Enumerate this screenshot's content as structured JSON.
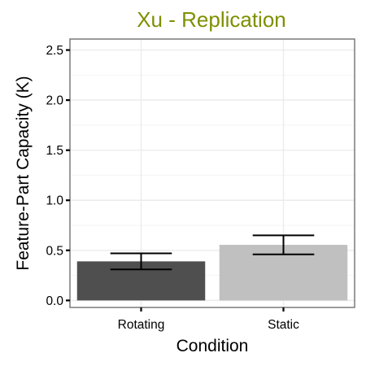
{
  "chart_data": {
    "type": "bar",
    "title": "Xu - Replication",
    "xlabel": "Condition",
    "ylabel": "Feature-Part Capacity (K)",
    "categories": [
      "Rotating",
      "Static"
    ],
    "values": [
      0.39,
      0.555
    ],
    "error_bars": {
      "lower": [
        0.31,
        0.46
      ],
      "upper": [
        0.47,
        0.65
      ]
    },
    "ylim": [
      -0.07,
      2.61
    ],
    "yticks": [
      0.0,
      0.5,
      1.0,
      1.5,
      2.0,
      2.5
    ],
    "ytick_labels": [
      "0.0",
      "0.5",
      "1.0",
      "1.5",
      "2.0",
      "2.5"
    ],
    "grid": true,
    "legend": "none",
    "colors": {
      "title": "#7f8f00",
      "bars": [
        "#4f4f4f",
        "#c0c0c0"
      ],
      "grid_major": "#ebebeb",
      "grid_minor": "#f5f5f5",
      "panel_border": "#7a7a7a"
    }
  }
}
